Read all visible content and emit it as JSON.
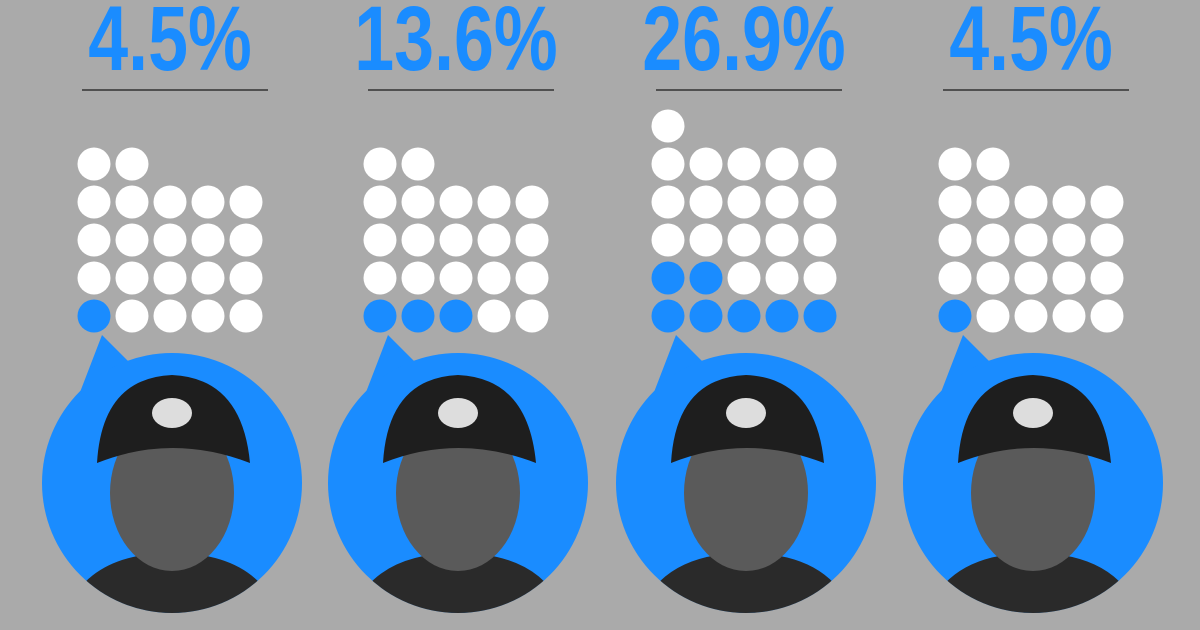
{
  "chart_data": {
    "type": "waffle",
    "values": [
      4.5,
      13.6,
      26.9,
      4.5
    ],
    "value_labels": [
      "4.5%",
      "13.6%",
      "26.9%",
      "4.5%"
    ],
    "totals": [
      22,
      22,
      26,
      22
    ],
    "highlighted": [
      1,
      3,
      7,
      1
    ],
    "color": "#1a8cff",
    "base_color": "#ffffff"
  }
}
